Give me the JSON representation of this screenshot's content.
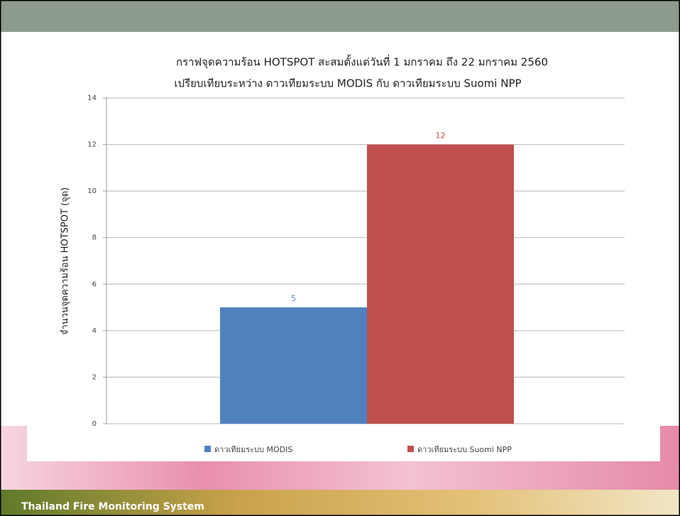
{
  "chart_data": {
    "type": "bar",
    "title": "กราฟจุดความร้อน HOTSPOT สะสมตั้งแต่วันที่ 1 มกราคม ถึง 22 มกราคม 2560",
    "subtitle": "เปรียบเทียบระหว่าง ดาวเทียมระบบ MODIS กับ  ดาวเทียมระบบ Suomi NPP",
    "y_label": "จำนวนจุดความร้อน HOTSPOT (จุด)",
    "categories": [
      null
    ],
    "series": [
      {
        "name": "ดาวเทียมระบบ MODIS",
        "color": "#4f81bd",
        "values": [
          5
        ]
      },
      {
        "name": "ดาวเทียมระบบ Suomi NPP",
        "color": "#c0504d",
        "values": [
          12
        ]
      }
    ],
    "ylim": [
      0,
      14
    ],
    "yticks": [
      0,
      2,
      4,
      6,
      8,
      10,
      12,
      14
    ],
    "grid": true,
    "legend": "bottom"
  },
  "footer": "Thailand Fire Monitoring System"
}
